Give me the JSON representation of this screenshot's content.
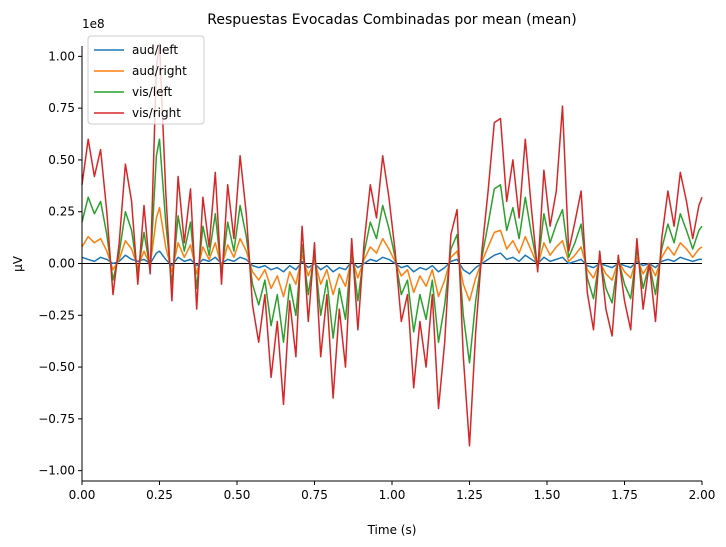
{
  "chart_data": {
    "type": "line",
    "title": "Respuestas Evocadas Combinadas por mean (mean)",
    "xlabel": "Time (s)",
    "ylabel": "µV",
    "y_scale_label": "1e8",
    "xlim": [
      0.0,
      2.0
    ],
    "ylim": [
      -1.05,
      1.05
    ],
    "y_unit_multiplier": 100000000,
    "x_ticks": [
      "0.00",
      "0.25",
      "0.50",
      "0.75",
      "1.00",
      "1.25",
      "1.50",
      "1.75",
      "2.00"
    ],
    "y_ticks": [
      "−1.00",
      "−0.75",
      "−0.50",
      "−0.25",
      "0.00",
      "0.25",
      "0.50",
      "0.75",
      "1.00"
    ],
    "legend_position": "top-left",
    "grid": false,
    "zero_line": true,
    "series": [
      {
        "name": "aud/left",
        "color": "#1f77b4",
        "x": [
          0,
          0.02,
          0.04,
          0.06,
          0.08,
          0.1,
          0.12,
          0.14,
          0.16,
          0.18,
          0.2,
          0.22,
          0.24,
          0.25,
          0.27,
          0.29,
          0.31,
          0.33,
          0.35,
          0.37,
          0.39,
          0.41,
          0.43,
          0.45,
          0.47,
          0.49,
          0.51,
          0.53,
          0.55,
          0.57,
          0.59,
          0.61,
          0.63,
          0.65,
          0.67,
          0.69,
          0.71,
          0.73,
          0.75,
          0.77,
          0.79,
          0.81,
          0.83,
          0.85,
          0.87,
          0.89,
          0.91,
          0.93,
          0.95,
          0.97,
          0.99,
          1.01,
          1.03,
          1.05,
          1.07,
          1.09,
          1.11,
          1.13,
          1.15,
          1.17,
          1.19,
          1.21,
          1.23,
          1.25,
          1.27,
          1.29,
          1.31,
          1.33,
          1.35,
          1.37,
          1.39,
          1.41,
          1.43,
          1.45,
          1.47,
          1.49,
          1.51,
          1.53,
          1.55,
          1.57,
          1.59,
          1.61,
          1.63,
          1.65,
          1.67,
          1.69,
          1.71,
          1.73,
          1.75,
          1.77,
          1.79,
          1.81,
          1.83,
          1.85,
          1.87,
          1.89,
          1.91,
          1.93,
          1.95,
          1.97,
          1.99,
          2.0
        ],
        "y": [
          0.03,
          0.02,
          0.01,
          0.03,
          0.02,
          0.0,
          0.01,
          0.04,
          0.02,
          0.01,
          0.02,
          0.0,
          0.05,
          0.06,
          0.02,
          -0.01,
          0.03,
          0.01,
          0.02,
          -0.01,
          0.02,
          0.01,
          0.03,
          0.0,
          0.02,
          0.01,
          0.03,
          0.02,
          -0.01,
          -0.02,
          -0.01,
          -0.03,
          -0.02,
          -0.04,
          -0.01,
          -0.03,
          0.01,
          -0.02,
          0.0,
          -0.03,
          -0.01,
          -0.04,
          -0.02,
          -0.03,
          0.01,
          -0.02,
          0.0,
          0.02,
          0.01,
          0.03,
          0.02,
          0.0,
          -0.02,
          -0.01,
          -0.04,
          -0.02,
          -0.03,
          -0.01,
          -0.04,
          -0.02,
          0.01,
          0.02,
          -0.03,
          -0.05,
          -0.02,
          0.0,
          0.02,
          0.04,
          0.05,
          0.02,
          0.03,
          0.01,
          0.04,
          0.02,
          0.0,
          0.03,
          0.01,
          0.02,
          0.03,
          0.0,
          0.01,
          0.02,
          -0.01,
          -0.02,
          0.0,
          -0.01,
          -0.02,
          0.0,
          -0.01,
          -0.02,
          0.01,
          -0.01,
          0.0,
          -0.02,
          0.01,
          0.02,
          0.01,
          0.03,
          0.02,
          0.01,
          0.02,
          0.02
        ]
      },
      {
        "name": "aud/right",
        "color": "#ff7f0e",
        "x": [
          0,
          0.02,
          0.04,
          0.06,
          0.08,
          0.1,
          0.12,
          0.14,
          0.16,
          0.18,
          0.2,
          0.22,
          0.24,
          0.25,
          0.27,
          0.29,
          0.31,
          0.33,
          0.35,
          0.37,
          0.39,
          0.41,
          0.43,
          0.45,
          0.47,
          0.49,
          0.51,
          0.53,
          0.55,
          0.57,
          0.59,
          0.61,
          0.63,
          0.65,
          0.67,
          0.69,
          0.71,
          0.73,
          0.75,
          0.77,
          0.79,
          0.81,
          0.83,
          0.85,
          0.87,
          0.89,
          0.91,
          0.93,
          0.95,
          0.97,
          0.99,
          1.01,
          1.03,
          1.05,
          1.07,
          1.09,
          1.11,
          1.13,
          1.15,
          1.17,
          1.19,
          1.21,
          1.23,
          1.25,
          1.27,
          1.29,
          1.31,
          1.33,
          1.35,
          1.37,
          1.39,
          1.41,
          1.43,
          1.45,
          1.47,
          1.49,
          1.51,
          1.53,
          1.55,
          1.57,
          1.59,
          1.61,
          1.63,
          1.65,
          1.67,
          1.69,
          1.71,
          1.73,
          1.75,
          1.77,
          1.79,
          1.81,
          1.83,
          1.85,
          1.87,
          1.89,
          1.91,
          1.93,
          1.95,
          1.97,
          1.99,
          2.0
        ],
        "y": [
          0.08,
          0.13,
          0.1,
          0.12,
          0.06,
          -0.03,
          0.02,
          0.11,
          0.07,
          -0.02,
          0.06,
          -0.01,
          0.22,
          0.27,
          0.08,
          -0.04,
          0.1,
          0.03,
          0.09,
          -0.05,
          0.08,
          0.02,
          0.1,
          -0.02,
          0.09,
          0.03,
          0.12,
          0.06,
          -0.04,
          -0.08,
          -0.03,
          -0.12,
          -0.06,
          -0.16,
          -0.04,
          -0.1,
          0.04,
          -0.06,
          0.02,
          -0.1,
          -0.03,
          -0.15,
          -0.05,
          -0.11,
          0.03,
          -0.07,
          0.02,
          0.08,
          0.05,
          0.12,
          0.07,
          0.01,
          -0.06,
          -0.03,
          -0.14,
          -0.06,
          -0.11,
          -0.03,
          -0.16,
          -0.08,
          0.03,
          0.06,
          -0.1,
          -0.18,
          -0.07,
          0.01,
          0.08,
          0.15,
          0.16,
          0.07,
          0.11,
          0.05,
          0.13,
          0.06,
          -0.01,
          0.1,
          0.04,
          0.08,
          0.11,
          0.01,
          0.04,
          0.08,
          -0.03,
          -0.07,
          0.01,
          -0.05,
          -0.08,
          0.01,
          -0.04,
          -0.07,
          0.03,
          -0.05,
          0.0,
          -0.06,
          0.03,
          0.08,
          0.04,
          0.1,
          0.07,
          0.03,
          0.07,
          0.08
        ]
      },
      {
        "name": "vis/left",
        "color": "#2ca02c",
        "x": [
          0,
          0.02,
          0.04,
          0.06,
          0.08,
          0.1,
          0.12,
          0.14,
          0.16,
          0.18,
          0.2,
          0.22,
          0.24,
          0.25,
          0.27,
          0.29,
          0.31,
          0.33,
          0.35,
          0.37,
          0.39,
          0.41,
          0.43,
          0.45,
          0.47,
          0.49,
          0.51,
          0.53,
          0.55,
          0.57,
          0.59,
          0.61,
          0.63,
          0.65,
          0.67,
          0.69,
          0.71,
          0.73,
          0.75,
          0.77,
          0.79,
          0.81,
          0.83,
          0.85,
          0.87,
          0.89,
          0.91,
          0.93,
          0.95,
          0.97,
          0.99,
          1.01,
          1.03,
          1.05,
          1.07,
          1.09,
          1.11,
          1.13,
          1.15,
          1.17,
          1.19,
          1.21,
          1.23,
          1.25,
          1.27,
          1.29,
          1.31,
          1.33,
          1.35,
          1.37,
          1.39,
          1.41,
          1.43,
          1.45,
          1.47,
          1.49,
          1.51,
          1.53,
          1.55,
          1.57,
          1.59,
          1.61,
          1.63,
          1.65,
          1.67,
          1.69,
          1.71,
          1.73,
          1.75,
          1.77,
          1.79,
          1.81,
          1.83,
          1.85,
          1.87,
          1.89,
          1.91,
          1.93,
          1.95,
          1.97,
          1.99,
          2.0
        ],
        "y": [
          0.2,
          0.32,
          0.24,
          0.3,
          0.14,
          -0.08,
          0.05,
          0.25,
          0.16,
          -0.05,
          0.15,
          -0.03,
          0.52,
          0.6,
          0.2,
          -0.1,
          0.23,
          0.06,
          0.2,
          -0.12,
          0.18,
          0.04,
          0.24,
          -0.05,
          0.2,
          0.06,
          0.28,
          0.13,
          -0.1,
          -0.2,
          -0.08,
          -0.3,
          -0.15,
          -0.38,
          -0.1,
          -0.25,
          0.09,
          -0.15,
          0.05,
          -0.25,
          -0.08,
          -0.36,
          -0.12,
          -0.27,
          0.07,
          -0.18,
          0.05,
          0.2,
          0.12,
          0.28,
          0.17,
          0.03,
          -0.15,
          -0.08,
          -0.33,
          -0.15,
          -0.27,
          -0.08,
          -0.38,
          -0.2,
          0.07,
          0.14,
          -0.25,
          -0.48,
          -0.18,
          0.03,
          0.19,
          0.36,
          0.38,
          0.16,
          0.27,
          0.12,
          0.32,
          0.14,
          -0.02,
          0.24,
          0.1,
          0.19,
          0.26,
          0.03,
          0.1,
          0.19,
          -0.07,
          -0.17,
          0.03,
          -0.12,
          -0.19,
          0.02,
          -0.1,
          -0.17,
          0.07,
          -0.12,
          0.0,
          -0.15,
          0.07,
          0.19,
          0.1,
          0.24,
          0.16,
          0.07,
          0.16,
          0.18
        ]
      },
      {
        "name": "vis/right",
        "color": "#d62728",
        "x": [
          0,
          0.02,
          0.04,
          0.06,
          0.08,
          0.1,
          0.12,
          0.14,
          0.16,
          0.18,
          0.2,
          0.22,
          0.24,
          0.25,
          0.27,
          0.29,
          0.31,
          0.33,
          0.35,
          0.37,
          0.39,
          0.41,
          0.43,
          0.45,
          0.47,
          0.49,
          0.51,
          0.53,
          0.55,
          0.57,
          0.59,
          0.61,
          0.63,
          0.65,
          0.67,
          0.69,
          0.71,
          0.73,
          0.75,
          0.77,
          0.79,
          0.81,
          0.83,
          0.85,
          0.87,
          0.89,
          0.91,
          0.93,
          0.95,
          0.97,
          0.99,
          1.01,
          1.03,
          1.05,
          1.07,
          1.09,
          1.11,
          1.13,
          1.15,
          1.17,
          1.19,
          1.21,
          1.23,
          1.25,
          1.27,
          1.29,
          1.31,
          1.33,
          1.35,
          1.37,
          1.39,
          1.41,
          1.43,
          1.45,
          1.47,
          1.49,
          1.51,
          1.53,
          1.55,
          1.57,
          1.59,
          1.61,
          1.63,
          1.65,
          1.67,
          1.69,
          1.71,
          1.73,
          1.75,
          1.77,
          1.79,
          1.81,
          1.83,
          1.85,
          1.87,
          1.89,
          1.91,
          1.93,
          1.95,
          1.97,
          1.99,
          2.0
        ],
        "y": [
          0.38,
          0.6,
          0.42,
          0.55,
          0.25,
          -0.15,
          0.1,
          0.48,
          0.3,
          -0.1,
          0.28,
          -0.05,
          0.95,
          1.06,
          0.35,
          -0.18,
          0.42,
          0.1,
          0.36,
          -0.22,
          0.32,
          0.08,
          0.44,
          -0.1,
          0.38,
          0.12,
          0.52,
          0.24,
          -0.2,
          -0.38,
          -0.15,
          -0.55,
          -0.28,
          -0.68,
          -0.18,
          -0.45,
          0.18,
          -0.28,
          0.1,
          -0.45,
          -0.15,
          -0.65,
          -0.22,
          -0.5,
          0.12,
          -0.32,
          0.1,
          0.38,
          0.22,
          0.52,
          0.32,
          0.06,
          -0.28,
          -0.15,
          -0.6,
          -0.28,
          -0.5,
          -0.15,
          -0.7,
          -0.38,
          0.14,
          0.26,
          -0.45,
          -0.88,
          -0.33,
          0.06,
          0.35,
          0.68,
          0.7,
          0.3,
          0.5,
          0.22,
          0.6,
          0.26,
          -0.04,
          0.45,
          0.18,
          0.35,
          0.76,
          0.06,
          0.2,
          0.35,
          -0.14,
          -0.32,
          0.06,
          -0.22,
          -0.35,
          0.04,
          -0.18,
          -0.32,
          0.12,
          -0.22,
          0.0,
          -0.28,
          0.12,
          0.35,
          0.18,
          0.44,
          0.3,
          0.12,
          0.28,
          0.32
        ]
      }
    ]
  }
}
